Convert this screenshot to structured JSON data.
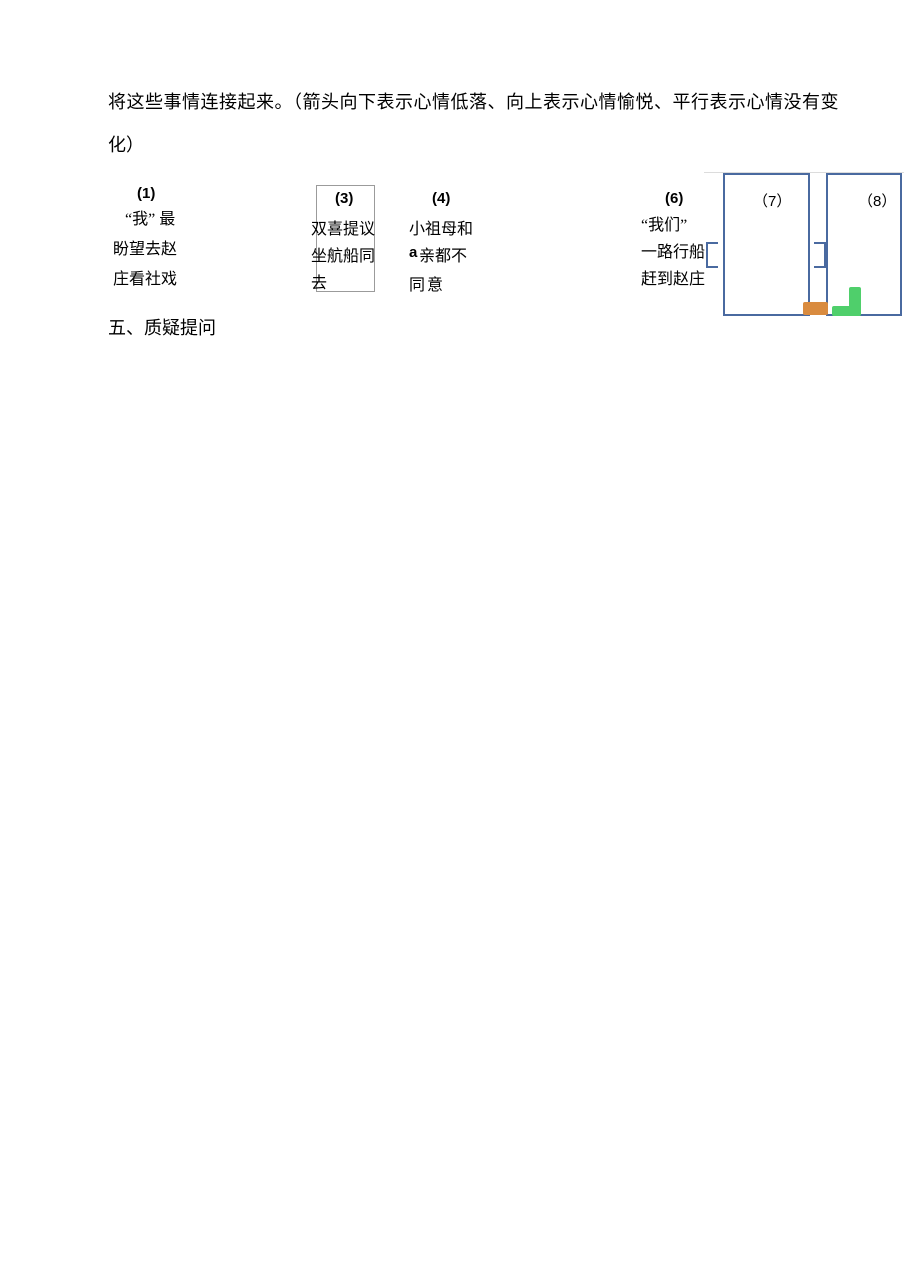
{
  "intro": {
    "line1": "将这些事情连接起来。（箭头向下表示心情低落、向上表示心情愉悦、平行表示心情没有变",
    "line2": "化）"
  },
  "cards": {
    "c1": {
      "num": "(1)",
      "l1": "“我” 最",
      "l2": "盼望去赵",
      "l3": "庄看社戏"
    },
    "c3": {
      "num": "(3)",
      "l1": "双喜提议",
      "l2": "坐航船同",
      "l3": "去"
    },
    "c4": {
      "num": "(4)",
      "l1": "小祖母和",
      "l2a": "a",
      "l2b": "亲都不",
      "l3": "同意"
    },
    "c6": {
      "num": "(6)",
      "l1": "“我们”",
      "l2": "一路行船",
      "l3": "赶到赵庄"
    },
    "c7": {
      "num": "（7）"
    },
    "c8": {
      "num": "（8）"
    }
  },
  "section": "五、质疑提问",
  "colors": {
    "border_blue": "#4a6aa0",
    "orange": "#d98b3f",
    "green": "#4fcf6b",
    "text": "#000000",
    "box_grey": "#9b9b9b"
  }
}
